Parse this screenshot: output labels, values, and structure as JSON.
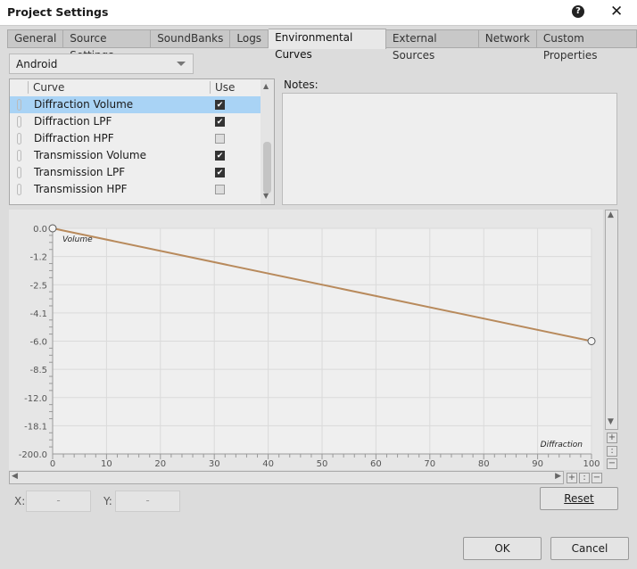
{
  "window": {
    "title": "Project Settings",
    "help_icon": "help-icon",
    "close_icon": "close-icon"
  },
  "tabs": [
    {
      "label": "General"
    },
    {
      "label": "Source Settings"
    },
    {
      "label": "SoundBanks"
    },
    {
      "label": "Logs"
    },
    {
      "label": "Environmental Curves",
      "active": true
    },
    {
      "label": "External Sources"
    },
    {
      "label": "Network"
    },
    {
      "label": "Custom Properties"
    }
  ],
  "platform_dropdown": {
    "value": "Android"
  },
  "curve_list": {
    "headers": {
      "curve": "Curve",
      "use": "Use"
    },
    "rows": [
      {
        "label": "Diffraction Volume",
        "use": true,
        "selected": true
      },
      {
        "label": "Diffraction LPF",
        "use": true
      },
      {
        "label": "Diffraction HPF",
        "use": false
      },
      {
        "label": "Transmission Volume",
        "use": true
      },
      {
        "label": "Transmission LPF",
        "use": true
      },
      {
        "label": "Transmission HPF",
        "use": false
      }
    ]
  },
  "notes": {
    "label": "Notes:",
    "value": ""
  },
  "chart_data": {
    "type": "line",
    "x_label": "Diffraction",
    "y_label": "Volume",
    "x_ticks": [
      "0",
      "10",
      "20",
      "30",
      "40",
      "50",
      "60",
      "70",
      "80",
      "90",
      "100"
    ],
    "y_ticks": [
      "0.0",
      "-1.2",
      "-2.5",
      "-4.1",
      "-6.0",
      "-8.5",
      "-12.0",
      "-18.1",
      "-200.0"
    ],
    "xlim": [
      0,
      100
    ],
    "ylim": [
      -200,
      0
    ],
    "y_scale": "decibel (non-linear)",
    "grid": true,
    "series": [
      {
        "color": "#b88a5c",
        "points": [
          [
            0,
            0
          ],
          [
            100,
            -6.0
          ]
        ]
      }
    ]
  },
  "coords": {
    "x_label": "X:",
    "x_value": "-",
    "y_label": "Y:",
    "y_value": "-"
  },
  "buttons": {
    "reset": "Reset",
    "ok": "OK",
    "cancel": "Cancel"
  }
}
